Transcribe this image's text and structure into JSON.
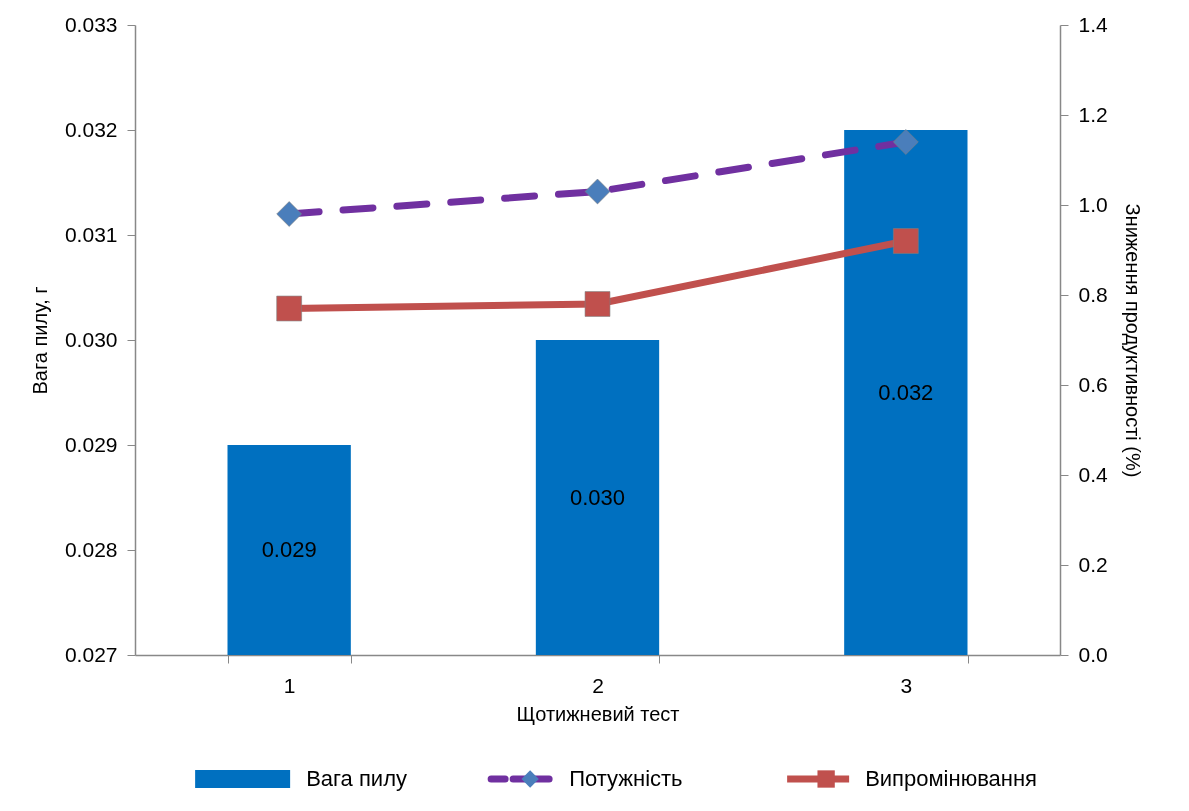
{
  "chart_data": {
    "type": "bar",
    "xlabel": "Щотижневий тест",
    "ylabel": "Вага пилу, г",
    "y2label": "Зниження продуктивності (%)",
    "categories": [
      "1",
      "2",
      "3"
    ],
    "series": [
      {
        "name": "Вага пилу",
        "color": "#0070c0",
        "values": [
          0.029,
          0.03,
          0.032
        ],
        "value_labels": [
          "0.029",
          "0.030",
          "0.032"
        ]
      },
      {
        "name": "Потужність",
        "type": "line",
        "axis": "y2",
        "color": "#7030a0",
        "colors": [
          "#4a7ebb",
          "#4a7ebb",
          "#4a7ebb"
        ],
        "values": [
          0.98,
          1.03,
          1.14
        ],
        "line_style": "dashed",
        "marker": "diamond"
      },
      {
        "name": "Випромінювання",
        "type": "line",
        "axis": "y2",
        "color": "#c0504d",
        "values": [
          0.77,
          0.78,
          0.92
        ],
        "line_style": "solid",
        "marker": "square"
      }
    ],
    "ylim": [
      0.027,
      0.033
    ],
    "yticks": [
      0.027,
      0.028,
      0.029,
      {
        "value": 0.03,
        "label": "0.030"
      },
      0.031,
      0.032,
      0.033
    ],
    "y2lim": [
      0,
      1.4
    ],
    "y2ticks": [
      {
        "value": 0,
        "label": "0.0"
      },
      0.2,
      0.4,
      0.6,
      0.8,
      {
        "value": 1,
        "label": "1.0"
      },
      1.2,
      1.4
    ],
    "grid": false,
    "legend": "bottom"
  }
}
